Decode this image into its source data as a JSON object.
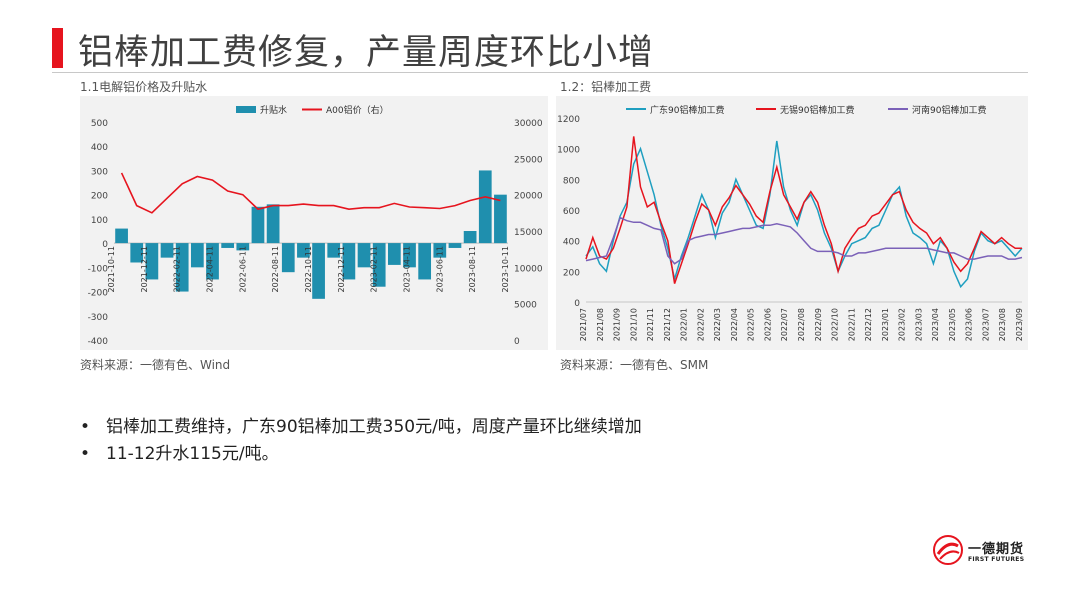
{
  "slide": {
    "title": "铝棒加工费修复，产量周度环比小增",
    "bullets": [
      "铝棒加工费维持，广东90铝棒加工费350元/吨，周度产量环比继续增加",
      "11-12升水115元/吨。"
    ],
    "logo": {
      "name": "一德期货",
      "sub": "FIRST FUTURES"
    },
    "accent_color": "#e6141e"
  },
  "charts": {
    "left": {
      "caption": "1.1电解铝价格及升贴水",
      "source": "资料来源：一德有色、Wind"
    },
    "right": {
      "caption": "1.2：铝棒加工费",
      "source": "资料来源：一德有色、SMM"
    }
  },
  "chart_data": [
    {
      "type": "bar+line",
      "legend_position": "top",
      "series": [
        {
          "name": "升贴水",
          "kind": "bar",
          "axis": "left",
          "color": "#1f8fae",
          "x": [
            "2021-10",
            "2021-11",
            "2021-12",
            "2022-01",
            "2022-02",
            "2022-03",
            "2022-04",
            "2022-05",
            "2022-06",
            "2022-07",
            "2022-08",
            "2022-09",
            "2022-10",
            "2022-11",
            "2022-12",
            "2023-01",
            "2023-02",
            "2023-03",
            "2023-04",
            "2023-05",
            "2023-06",
            "2023-07",
            "2023-08",
            "2023-09",
            "2023-10",
            "2023-11"
          ],
          "values": [
            60,
            -80,
            -150,
            -60,
            -200,
            -100,
            -150,
            -20,
            -30,
            150,
            160,
            -120,
            -60,
            -230,
            -60,
            -150,
            -100,
            -180,
            -90,
            -100,
            -150,
            -60,
            -20,
            50,
            300,
            200
          ]
        },
        {
          "name": "A00铝价（右）",
          "kind": "line",
          "axis": "right",
          "color": "#e6141e",
          "x": [
            "2021-10",
            "2021-11",
            "2021-12",
            "2022-01",
            "2022-02",
            "2022-03",
            "2022-04",
            "2022-05",
            "2022-06",
            "2022-07",
            "2022-08",
            "2022-09",
            "2022-10",
            "2022-11",
            "2022-12",
            "2023-01",
            "2023-02",
            "2023-03",
            "2023-04",
            "2023-05",
            "2023-06",
            "2023-07",
            "2023-08",
            "2023-09",
            "2023-10",
            "2023-11"
          ],
          "values": [
            23000,
            18500,
            17500,
            19500,
            21500,
            22500,
            22000,
            20500,
            20000,
            18000,
            18500,
            18500,
            18700,
            18500,
            18500,
            18000,
            18200,
            18200,
            18800,
            18300,
            18200,
            18100,
            18500,
            19200,
            19700,
            19200
          ]
        }
      ],
      "x_ticks": [
        "2021-10-11",
        "2021-12-11",
        "2022-02-11",
        "2022-04-11",
        "2022-06-11",
        "2022-08-11",
        "2022-10-11",
        "2022-12-11",
        "2023-02-11",
        "2023-04-11",
        "2023-06-11",
        "2023-08-11",
        "2023-10-11"
      ],
      "y_left": {
        "min": -400,
        "max": 500,
        "step": 100
      },
      "y_right": {
        "min": 0,
        "max": 30000,
        "step": 5000
      }
    },
    {
      "type": "line",
      "legend_position": "top",
      "series": [
        {
          "name": "广东90铝棒加工费",
          "color": "#1f9fc0",
          "values": [
            300,
            360,
            250,
            200,
            400,
            560,
            650,
            900,
            1000,
            850,
            700,
            500,
            350,
            150,
            300,
            420,
            560,
            700,
            600,
            420,
            580,
            650,
            800,
            700,
            600,
            500,
            480,
            700,
            1050,
            750,
            600,
            500,
            650,
            700,
            600,
            450,
            350,
            200,
            300,
            380,
            400,
            420,
            480,
            500,
            600,
            700,
            750,
            560,
            450,
            420,
            380,
            250,
            400,
            350,
            200,
            100,
            150,
            330,
            450,
            400,
            380,
            400,
            350,
            300,
            350
          ]
        },
        {
          "name": "无锡90铝棒加工费",
          "color": "#e6141e",
          "values": [
            280,
            420,
            300,
            280,
            350,
            480,
            620,
            1080,
            750,
            620,
            650,
            520,
            400,
            120,
            250,
            380,
            520,
            640,
            600,
            500,
            620,
            680,
            760,
            700,
            640,
            560,
            520,
            720,
            880,
            700,
            620,
            540,
            650,
            720,
            650,
            500,
            380,
            200,
            350,
            420,
            480,
            500,
            560,
            580,
            640,
            700,
            720,
            600,
            520,
            480,
            450,
            380,
            420,
            350,
            260,
            200,
            250,
            350,
            460,
            420,
            380,
            420,
            380,
            350,
            350
          ]
        },
        {
          "name": "河南90铝棒加工费",
          "color": "#7b61b8",
          "values": [
            270,
            280,
            290,
            300,
            420,
            550,
            530,
            520,
            520,
            500,
            480,
            470,
            300,
            250,
            280,
            400,
            420,
            430,
            440,
            440,
            450,
            460,
            470,
            480,
            480,
            490,
            500,
            500,
            510,
            500,
            490,
            450,
            400,
            350,
            330,
            330,
            330,
            320,
            300,
            300,
            320,
            320,
            330,
            340,
            350,
            350,
            350,
            350,
            350,
            350,
            350,
            340,
            330,
            320,
            320,
            300,
            280,
            280,
            290,
            300,
            300,
            300,
            280,
            280,
            290
          ]
        }
      ],
      "x_ticks": [
        "2021/07",
        "2021/08",
        "2021/09",
        "2021/10",
        "2021/11",
        "2021/12",
        "2022/01",
        "2022/02",
        "2022/03",
        "2022/04",
        "2022/05",
        "2022/06",
        "2022/07",
        "2022/08",
        "2022/09",
        "2022/10",
        "2022/11",
        "2022/12",
        "2023/01",
        "2023/02",
        "2023/03",
        "2023/04",
        "2023/05",
        "2023/06",
        "2023/07",
        "2023/08",
        "2023/09"
      ],
      "y": {
        "min": 0,
        "max": 1200,
        "step": 200
      }
    }
  ]
}
